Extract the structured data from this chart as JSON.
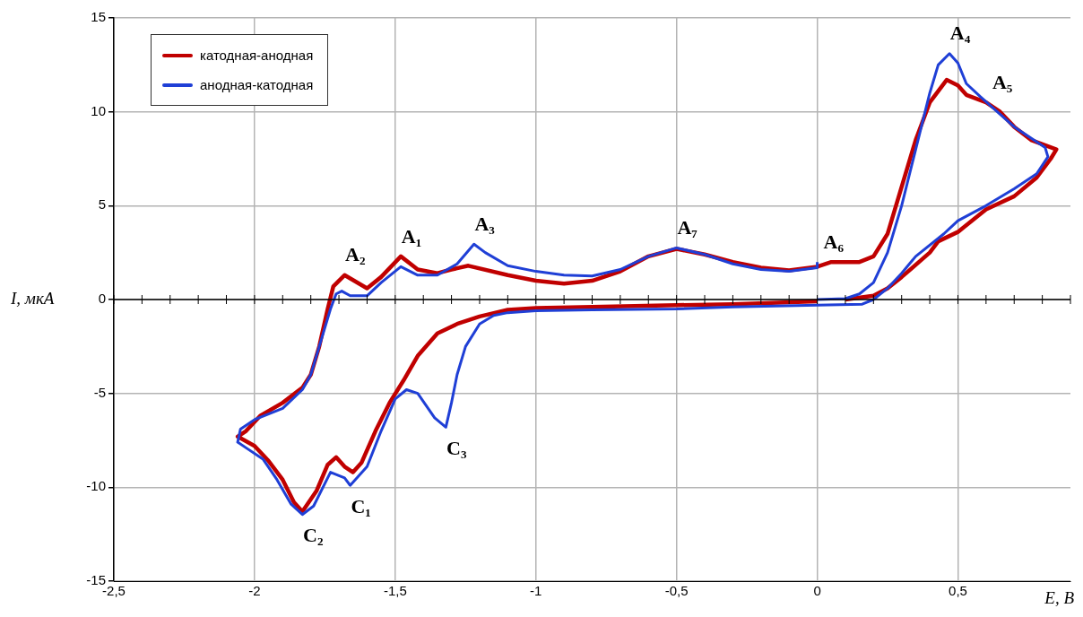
{
  "chart_data": {
    "type": "line",
    "xlabel": "E, В",
    "ylabel": "I, мкА",
    "legend": "top left",
    "grid": true,
    "xlim": [
      -2.5,
      0.9
    ],
    "xticks": [
      {
        "value": -2.5,
        "label": "-2,5"
      },
      -2,
      {
        "value": -1.5,
        "label": "-1,5"
      },
      -1,
      {
        "value": -0.5,
        "label": "-0,5"
      },
      0,
      {
        "value": 0.5,
        "label": "0,5"
      }
    ],
    "ylim": [
      -15,
      15
    ],
    "yticks": [
      -15,
      -10,
      -5,
      0,
      5,
      10,
      15
    ],
    "series": [
      {
        "name": "катодная-анодная",
        "color": "#c00000",
        "x": [
          0.0,
          -0.3,
          -0.5,
          -0.8,
          -1.0,
          -1.1,
          -1.2,
          -1.28,
          -1.35,
          -1.42,
          -1.47,
          -1.52,
          -1.57,
          -1.62,
          -1.65,
          -1.68,
          -1.71,
          -1.74,
          -1.78,
          -1.83,
          -1.86,
          -1.9,
          -1.95,
          -2.0,
          -2.06,
          -2.03,
          -1.98,
          -1.9,
          -1.83,
          -1.8,
          -1.77,
          -1.74,
          -1.72,
          -1.68,
          -1.6,
          -1.55,
          -1.48,
          -1.42,
          -1.35,
          -1.3,
          -1.24,
          -1.1,
          -1.0,
          -0.9,
          -0.8,
          -0.7,
          -0.6,
          -0.5,
          -0.4,
          -0.3,
          -0.2,
          -0.1,
          0.0,
          0.05,
          0.15,
          0.2,
          0.25,
          0.3,
          0.35,
          0.4,
          0.46,
          0.5,
          0.53,
          0.6,
          0.65,
          0.7,
          0.76,
          0.85,
          0.83,
          0.78,
          0.7,
          0.6,
          0.5,
          0.43,
          0.4,
          0.3,
          0.25,
          0.2,
          0.1
        ],
        "values": [
          -0.1,
          -0.25,
          -0.3,
          -0.4,
          -0.45,
          -0.55,
          -0.9,
          -1.3,
          -1.8,
          -3.0,
          -4.3,
          -5.5,
          -7.0,
          -8.7,
          -9.2,
          -8.9,
          -8.4,
          -8.8,
          -10.2,
          -11.3,
          -10.8,
          -9.6,
          -8.6,
          -7.8,
          -7.3,
          -7.0,
          -6.2,
          -5.5,
          -4.7,
          -4.0,
          -2.5,
          -0.5,
          0.7,
          1.3,
          0.6,
          1.2,
          2.3,
          1.6,
          1.4,
          1.6,
          1.8,
          1.3,
          1.0,
          0.85,
          1.0,
          1.5,
          2.3,
          2.7,
          2.4,
          2.0,
          1.7,
          1.55,
          1.75,
          2.0,
          2.0,
          2.3,
          3.5,
          6.0,
          8.5,
          10.5,
          11.7,
          11.4,
          10.9,
          10.5,
          10.0,
          9.2,
          8.5,
          8.0,
          7.5,
          6.5,
          5.5,
          4.8,
          3.6,
          3.1,
          2.5,
          1.2,
          0.6,
          0.2,
          0.0
        ]
      },
      {
        "name": "анодная-катодная",
        "color": "#1f3fd6",
        "x": [
          0.0,
          0.1,
          0.15,
          0.2,
          0.25,
          0.3,
          0.35,
          0.4,
          0.43,
          0.47,
          0.5,
          0.53,
          0.58,
          0.64,
          0.7,
          0.76,
          0.81,
          0.82,
          0.78,
          0.7,
          0.6,
          0.5,
          0.45,
          0.35,
          0.3,
          0.25,
          0.2,
          0.16,
          0.0,
          -0.3,
          -0.5,
          -0.8,
          -1.0,
          -1.1,
          -1.15,
          -1.2,
          -1.25,
          -1.28,
          -1.3,
          -1.32,
          -1.36,
          -1.42,
          -1.46,
          -1.5,
          -1.55,
          -1.6,
          -1.66,
          -1.68,
          -1.73,
          -1.75,
          -1.79,
          -1.83,
          -1.87,
          -1.92,
          -1.97,
          -2.03,
          -2.06,
          -2.05,
          -2.0,
          -1.9,
          -1.83,
          -1.8,
          -1.77,
          -1.73,
          -1.71,
          -1.69,
          -1.66,
          -1.6,
          -1.55,
          -1.48,
          -1.42,
          -1.35,
          -1.28,
          -1.22,
          -1.18,
          -1.1,
          -1.0,
          -0.9,
          -0.8,
          -0.7,
          -0.6,
          -0.5,
          -0.4,
          -0.3,
          -0.2,
          -0.1,
          0.0,
          0.0
        ],
        "values": [
          0.0,
          0.05,
          0.3,
          0.9,
          2.5,
          5.0,
          8.0,
          11.0,
          12.5,
          13.1,
          12.6,
          11.5,
          10.8,
          10.0,
          9.2,
          8.6,
          8.1,
          7.6,
          6.7,
          5.9,
          5.0,
          4.2,
          3.5,
          2.3,
          1.4,
          0.6,
          0.0,
          -0.25,
          -0.3,
          -0.4,
          -0.5,
          -0.55,
          -0.6,
          -0.7,
          -0.85,
          -1.3,
          -2.5,
          -4.0,
          -5.5,
          -6.8,
          -6.3,
          -5.0,
          -4.8,
          -5.3,
          -7.0,
          -8.9,
          -9.9,
          -9.5,
          -9.2,
          -9.8,
          -11.0,
          -11.45,
          -10.9,
          -9.6,
          -8.5,
          -7.9,
          -7.6,
          -6.9,
          -6.4,
          -5.8,
          -4.8,
          -4.0,
          -2.5,
          -0.5,
          0.3,
          0.45,
          0.2,
          0.2,
          0.9,
          1.75,
          1.3,
          1.3,
          1.9,
          2.95,
          2.5,
          1.8,
          1.5,
          1.3,
          1.25,
          1.6,
          2.3,
          2.75,
          2.4,
          1.9,
          1.6,
          1.5,
          1.7,
          2.0
        ]
      }
    ],
    "annotations": [
      {
        "text": "A₁",
        "x": -1.48,
        "y": 2.3
      },
      {
        "text": "A₂",
        "x": -1.68,
        "y": 1.3
      },
      {
        "text": "A₃",
        "x": -1.22,
        "y": 2.95
      },
      {
        "text": "A₄",
        "x": 0.47,
        "y": 13.1
      },
      {
        "text": "A₅",
        "x": 0.62,
        "y": 10.5
      },
      {
        "text": "A₆",
        "x": 0.02,
        "y": 2.0
      },
      {
        "text": "A₇",
        "x": -0.5,
        "y": 2.75
      },
      {
        "text": "C₁",
        "x": -1.66,
        "y": -9.9
      },
      {
        "text": "C₂",
        "x": -1.83,
        "y": -11.45
      },
      {
        "text": "C₃",
        "x": -1.32,
        "y": -6.8
      }
    ]
  }
}
